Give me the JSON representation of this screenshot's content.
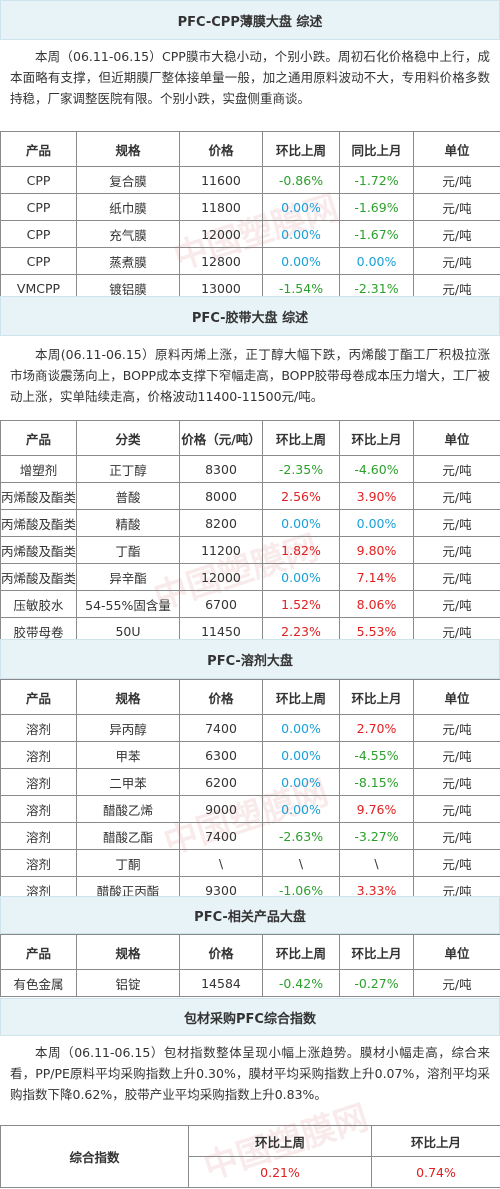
{
  "watermark": "中国塑膜网",
  "cpp": {
    "title": "PFC-CPP薄膜大盘 综述",
    "desc": "本周（06.11-06.15）CPP膜市大稳小动，个别小跌。周初石化价格稳中上行，成本面略有支撑，但近期膜厂整体接单量一般，加之通用原料波动不大，专用料价格多数持稳，厂家调整医院有限。个别小跌，实盘侧重商谈。",
    "headers": [
      "产品",
      "规格",
      "价格",
      "环比上周",
      "同比上月",
      "单位"
    ],
    "rows": [
      [
        "CPP",
        "复合膜",
        "11600",
        "-0.86%",
        "-1.72%",
        "元/吨"
      ],
      [
        "CPP",
        "纸巾膜",
        "11800",
        "0.00%",
        "-1.69%",
        "元/吨"
      ],
      [
        "CPP",
        "充气膜",
        "12000",
        "0.00%",
        "-1.67%",
        "元/吨"
      ],
      [
        "CPP",
        "蒸煮膜",
        "12800",
        "0.00%",
        "0.00%",
        "元/吨"
      ],
      [
        "VMCPP",
        "镀铝膜",
        "13000",
        "-1.54%",
        "-2.31%",
        "元/吨"
      ]
    ]
  },
  "tape": {
    "title": "PFC-胶带大盘 综述",
    "desc": "本周(06.11-06.15）原料丙烯上涨，正丁醇大幅下跌，丙烯酸丁酯工厂积极拉涨市场商谈震荡向上，BOPP成本支撑下窄幅走高，BOPP胶带母卷成本压力增大，工厂被动上涨，实单陆续走高，价格波动11400-11500元/吨。",
    "headers": [
      "产品",
      "分类",
      "价格（元/吨）",
      "环比上周",
      "环比上月",
      "单位"
    ],
    "rows": [
      [
        "增塑剂",
        "正丁醇",
        "8300",
        "-2.35%",
        "-4.60%",
        "元/吨"
      ],
      [
        "丙烯酸及酯类",
        "普酸",
        "8000",
        "2.56%",
        "3.90%",
        "元/吨"
      ],
      [
        "丙烯酸及酯类",
        "精酸",
        "8200",
        "0.00%",
        "0.00%",
        "元/吨"
      ],
      [
        "丙烯酸及酯类",
        "丁酯",
        "11200",
        "1.82%",
        "9.80%",
        "元/吨"
      ],
      [
        "丙烯酸及酯类",
        "异辛酯",
        "12000",
        "0.00%",
        "7.14%",
        "元/吨"
      ],
      [
        "压敏胶水",
        "54-55%固含量",
        "6700",
        "1.52%",
        "8.06%",
        "元/吨"
      ],
      [
        "胶带母卷",
        "50U",
        "11450",
        "2.23%",
        "5.53%",
        "元/吨"
      ]
    ]
  },
  "solvent": {
    "title": "PFC-溶剂大盘",
    "headers": [
      "产品",
      "规格",
      "价格",
      "环比上周",
      "环比上月",
      "单位"
    ],
    "rows": [
      [
        "溶剂",
        "异丙醇",
        "7400",
        "0.00%",
        "2.70%",
        "元/吨"
      ],
      [
        "溶剂",
        "甲苯",
        "6300",
        "0.00%",
        "-4.55%",
        "元/吨"
      ],
      [
        "溶剂",
        "二甲苯",
        "6200",
        "0.00%",
        "-8.15%",
        "元/吨"
      ],
      [
        "溶剂",
        "醋酸乙烯",
        "9000",
        "0.00%",
        "9.76%",
        "元/吨"
      ],
      [
        "溶剂",
        "醋酸乙酯",
        "7400",
        "-2.63%",
        "-3.27%",
        "元/吨"
      ],
      [
        "溶剂",
        "丁酮",
        "\\",
        "\\",
        "\\",
        "元/吨"
      ],
      [
        "溶剂",
        "醋酸正丙酯",
        "9300",
        "-1.06%",
        "3.33%",
        "元/吨"
      ]
    ]
  },
  "related": {
    "title": "PFC-相关产品大盘",
    "headers": [
      "产品",
      "规格",
      "价格",
      "环比上周",
      "环比上月",
      "单位"
    ],
    "rows": [
      [
        "有色金属",
        "铝锭",
        "14584",
        "-0.42%",
        "-0.27%",
        "元/吨"
      ]
    ]
  },
  "index": {
    "title": "包材采购PFC综合指数",
    "desc": "本周（06.11-06.15）包材指数整体呈现小幅上涨趋势。膜材小幅走高，综合来看，PP/PE原料平均采购指数上升0.30%，膜材平均采购指数上升0.07%，溶剂平均采购指数下降0.62%，胶带产业平均采购指数上升0.83%。",
    "label": "综合指数",
    "col1_header": "环比上周",
    "col2_header": "环比上月",
    "col1_value": "0.21%",
    "col2_value": "0.74%"
  },
  "colors": {
    "up": "#e02020",
    "down": "#2ca02c",
    "zero": "#1aa0d8",
    "title_bg": "#e8f3f7"
  }
}
